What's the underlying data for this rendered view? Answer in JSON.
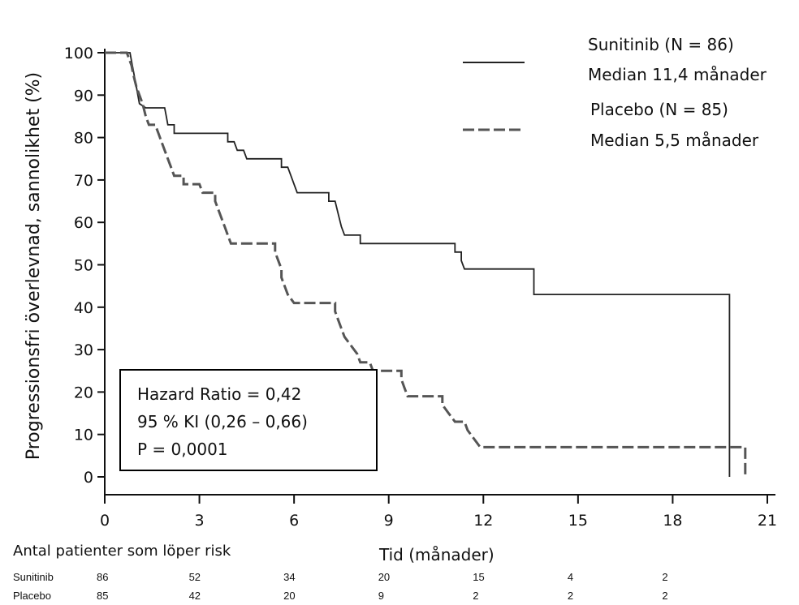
{
  "chart_data": {
    "type": "line",
    "title": "",
    "xlabel": "Tid (månader)",
    "ylabel": "Progressionsfri överlevnad, sannolikhet (%)",
    "xlim": [
      0,
      21
    ],
    "ylim": [
      0,
      100
    ],
    "xticks": [
      "0",
      "3",
      "6",
      "9",
      "12",
      "15",
      "18",
      "21"
    ],
    "yticks": [
      "0",
      "10",
      "20",
      "30",
      "40",
      "50",
      "60",
      "70",
      "80",
      "90",
      "100"
    ],
    "grid": false,
    "legend_position": "top-right",
    "series": [
      {
        "name": "Sunitinib (N = 86)",
        "median_label": "Median 11,4 månader",
        "color": "#222222",
        "style": "solid",
        "points": [
          [
            0,
            100
          ],
          [
            0.8,
            100
          ],
          [
            0.85,
            98
          ],
          [
            0.9,
            96
          ],
          [
            0.95,
            94
          ],
          [
            1.0,
            92
          ],
          [
            1.05,
            90
          ],
          [
            1.1,
            88
          ],
          [
            1.3,
            87
          ],
          [
            1.9,
            87
          ],
          [
            1.95,
            85
          ],
          [
            2.0,
            83
          ],
          [
            2.2,
            83
          ],
          [
            2.2,
            81
          ],
          [
            2.3,
            81
          ],
          [
            3.9,
            81
          ],
          [
            3.9,
            79
          ],
          [
            4.1,
            79
          ],
          [
            4.2,
            77
          ],
          [
            4.4,
            77
          ],
          [
            4.5,
            75
          ],
          [
            5.6,
            75
          ],
          [
            5.6,
            73
          ],
          [
            5.8,
            73
          ],
          [
            5.9,
            71
          ],
          [
            6.0,
            69
          ],
          [
            6.1,
            67
          ],
          [
            7.1,
            67
          ],
          [
            7.1,
            65
          ],
          [
            7.3,
            65
          ],
          [
            7.4,
            62
          ],
          [
            7.5,
            59
          ],
          [
            7.6,
            57
          ],
          [
            8.1,
            57
          ],
          [
            8.1,
            55
          ],
          [
            11.1,
            55
          ],
          [
            11.1,
            53
          ],
          [
            11.3,
            53
          ],
          [
            11.3,
            51
          ],
          [
            11.4,
            49
          ],
          [
            13.6,
            49
          ],
          [
            13.6,
            43
          ],
          [
            19.8,
            43
          ],
          [
            19.8,
            0
          ]
        ]
      },
      {
        "name": "Placebo (N = 85)",
        "median_label": "Median 5,5 månader",
        "color": "#555555",
        "style": "dashed",
        "points": [
          [
            0,
            100
          ],
          [
            0.7,
            100
          ],
          [
            0.85,
            97
          ],
          [
            0.9,
            95
          ],
          [
            1.0,
            92
          ],
          [
            1.1,
            90
          ],
          [
            1.2,
            88
          ],
          [
            1.3,
            85
          ],
          [
            1.4,
            83
          ],
          [
            1.6,
            83
          ],
          [
            1.7,
            81
          ],
          [
            1.8,
            79
          ],
          [
            1.9,
            77
          ],
          [
            2.0,
            75
          ],
          [
            2.1,
            73
          ],
          [
            2.2,
            71
          ],
          [
            2.5,
            71
          ],
          [
            2.5,
            69
          ],
          [
            3.0,
            69
          ],
          [
            3.1,
            67
          ],
          [
            3.5,
            67
          ],
          [
            3.5,
            65
          ],
          [
            3.6,
            63
          ],
          [
            3.7,
            61
          ],
          [
            3.8,
            59
          ],
          [
            3.9,
            57
          ],
          [
            4.0,
            55
          ],
          [
            5.4,
            55
          ],
          [
            5.4,
            53
          ],
          [
            5.5,
            51
          ],
          [
            5.6,
            49
          ],
          [
            5.6,
            47
          ],
          [
            5.7,
            45
          ],
          [
            5.8,
            43
          ],
          [
            6.0,
            41
          ],
          [
            7.3,
            41
          ],
          [
            7.3,
            39
          ],
          [
            7.4,
            37
          ],
          [
            7.5,
            35
          ],
          [
            7.6,
            33
          ],
          [
            7.8,
            31
          ],
          [
            8.0,
            29
          ],
          [
            8.1,
            27
          ],
          [
            8.4,
            27
          ],
          [
            8.5,
            25
          ],
          [
            9.4,
            25
          ],
          [
            9.4,
            23
          ],
          [
            9.5,
            21
          ],
          [
            9.6,
            19
          ],
          [
            10.7,
            19
          ],
          [
            10.7,
            17
          ],
          [
            10.9,
            15
          ],
          [
            11.1,
            13
          ],
          [
            11.4,
            13
          ],
          [
            11.5,
            11
          ],
          [
            11.7,
            9
          ],
          [
            11.9,
            7
          ],
          [
            20.3,
            7
          ],
          [
            20.3,
            0
          ]
        ]
      }
    ],
    "annotation": {
      "lines": [
        "Hazard Ratio = 0,42",
        "95 % KI (0,26 – 0,66)",
        "P = 0,0001"
      ]
    },
    "risk_table": {
      "title": "Antal patienter som löper risk",
      "times": [
        0,
        3,
        6,
        9,
        12,
        15,
        18
      ],
      "rows": [
        {
          "name": "Sunitinib",
          "values": [
            "86",
            "52",
            "34",
            "20",
            "15",
            "4",
            "2"
          ]
        },
        {
          "name": "Placebo",
          "values": [
            "85",
            "42",
            "20",
            "9",
            "2",
            "2",
            "2"
          ]
        }
      ]
    }
  }
}
